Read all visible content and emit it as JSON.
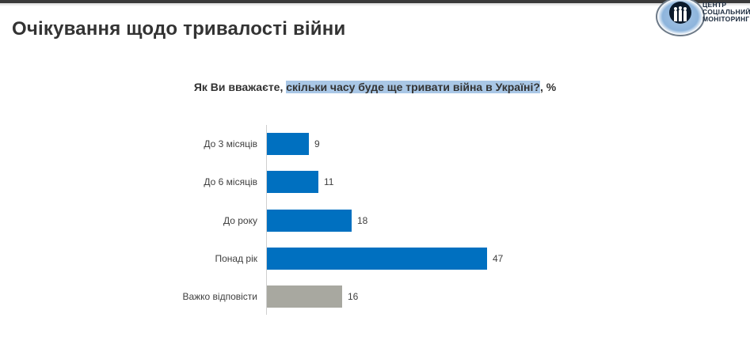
{
  "header": {
    "title": "Очікування щодо тривалості війни",
    "logo": {
      "line1": "ЦЕНТР",
      "line2": "СОЦІАЛЬНИЙ",
      "line3": "МОНІТОРИНГ",
      "icon": "people-circle-icon"
    }
  },
  "chart": {
    "title_prefix": "Як Ви вважаєте, ",
    "title_highlight": "скільки часу буде ще тривати війна в Україні?",
    "title_suffix": ", %"
  },
  "colors": {
    "primary_bar": "#0070C0",
    "neutral_bar": "#A8A8A0",
    "highlight": "#A9C7E6"
  },
  "chart_data": {
    "type": "bar",
    "orientation": "horizontal",
    "title": "Як Ви вважаєте, скільки часу буде ще тривати війна в Україні?, %",
    "categories": [
      "До 3 місяців",
      "До 6 місяців",
      "До року",
      "Понад рік",
      "Важко відповісти"
    ],
    "values": [
      9,
      11,
      18,
      47,
      16
    ],
    "bar_colors": [
      "#0070C0",
      "#0070C0",
      "#0070C0",
      "#0070C0",
      "#A8A8A0"
    ],
    "value_labels": [
      "9",
      "11",
      "18",
      "47",
      "16"
    ],
    "xlabel": "",
    "ylabel": "",
    "unit": "%",
    "grid": false,
    "legend": null
  }
}
